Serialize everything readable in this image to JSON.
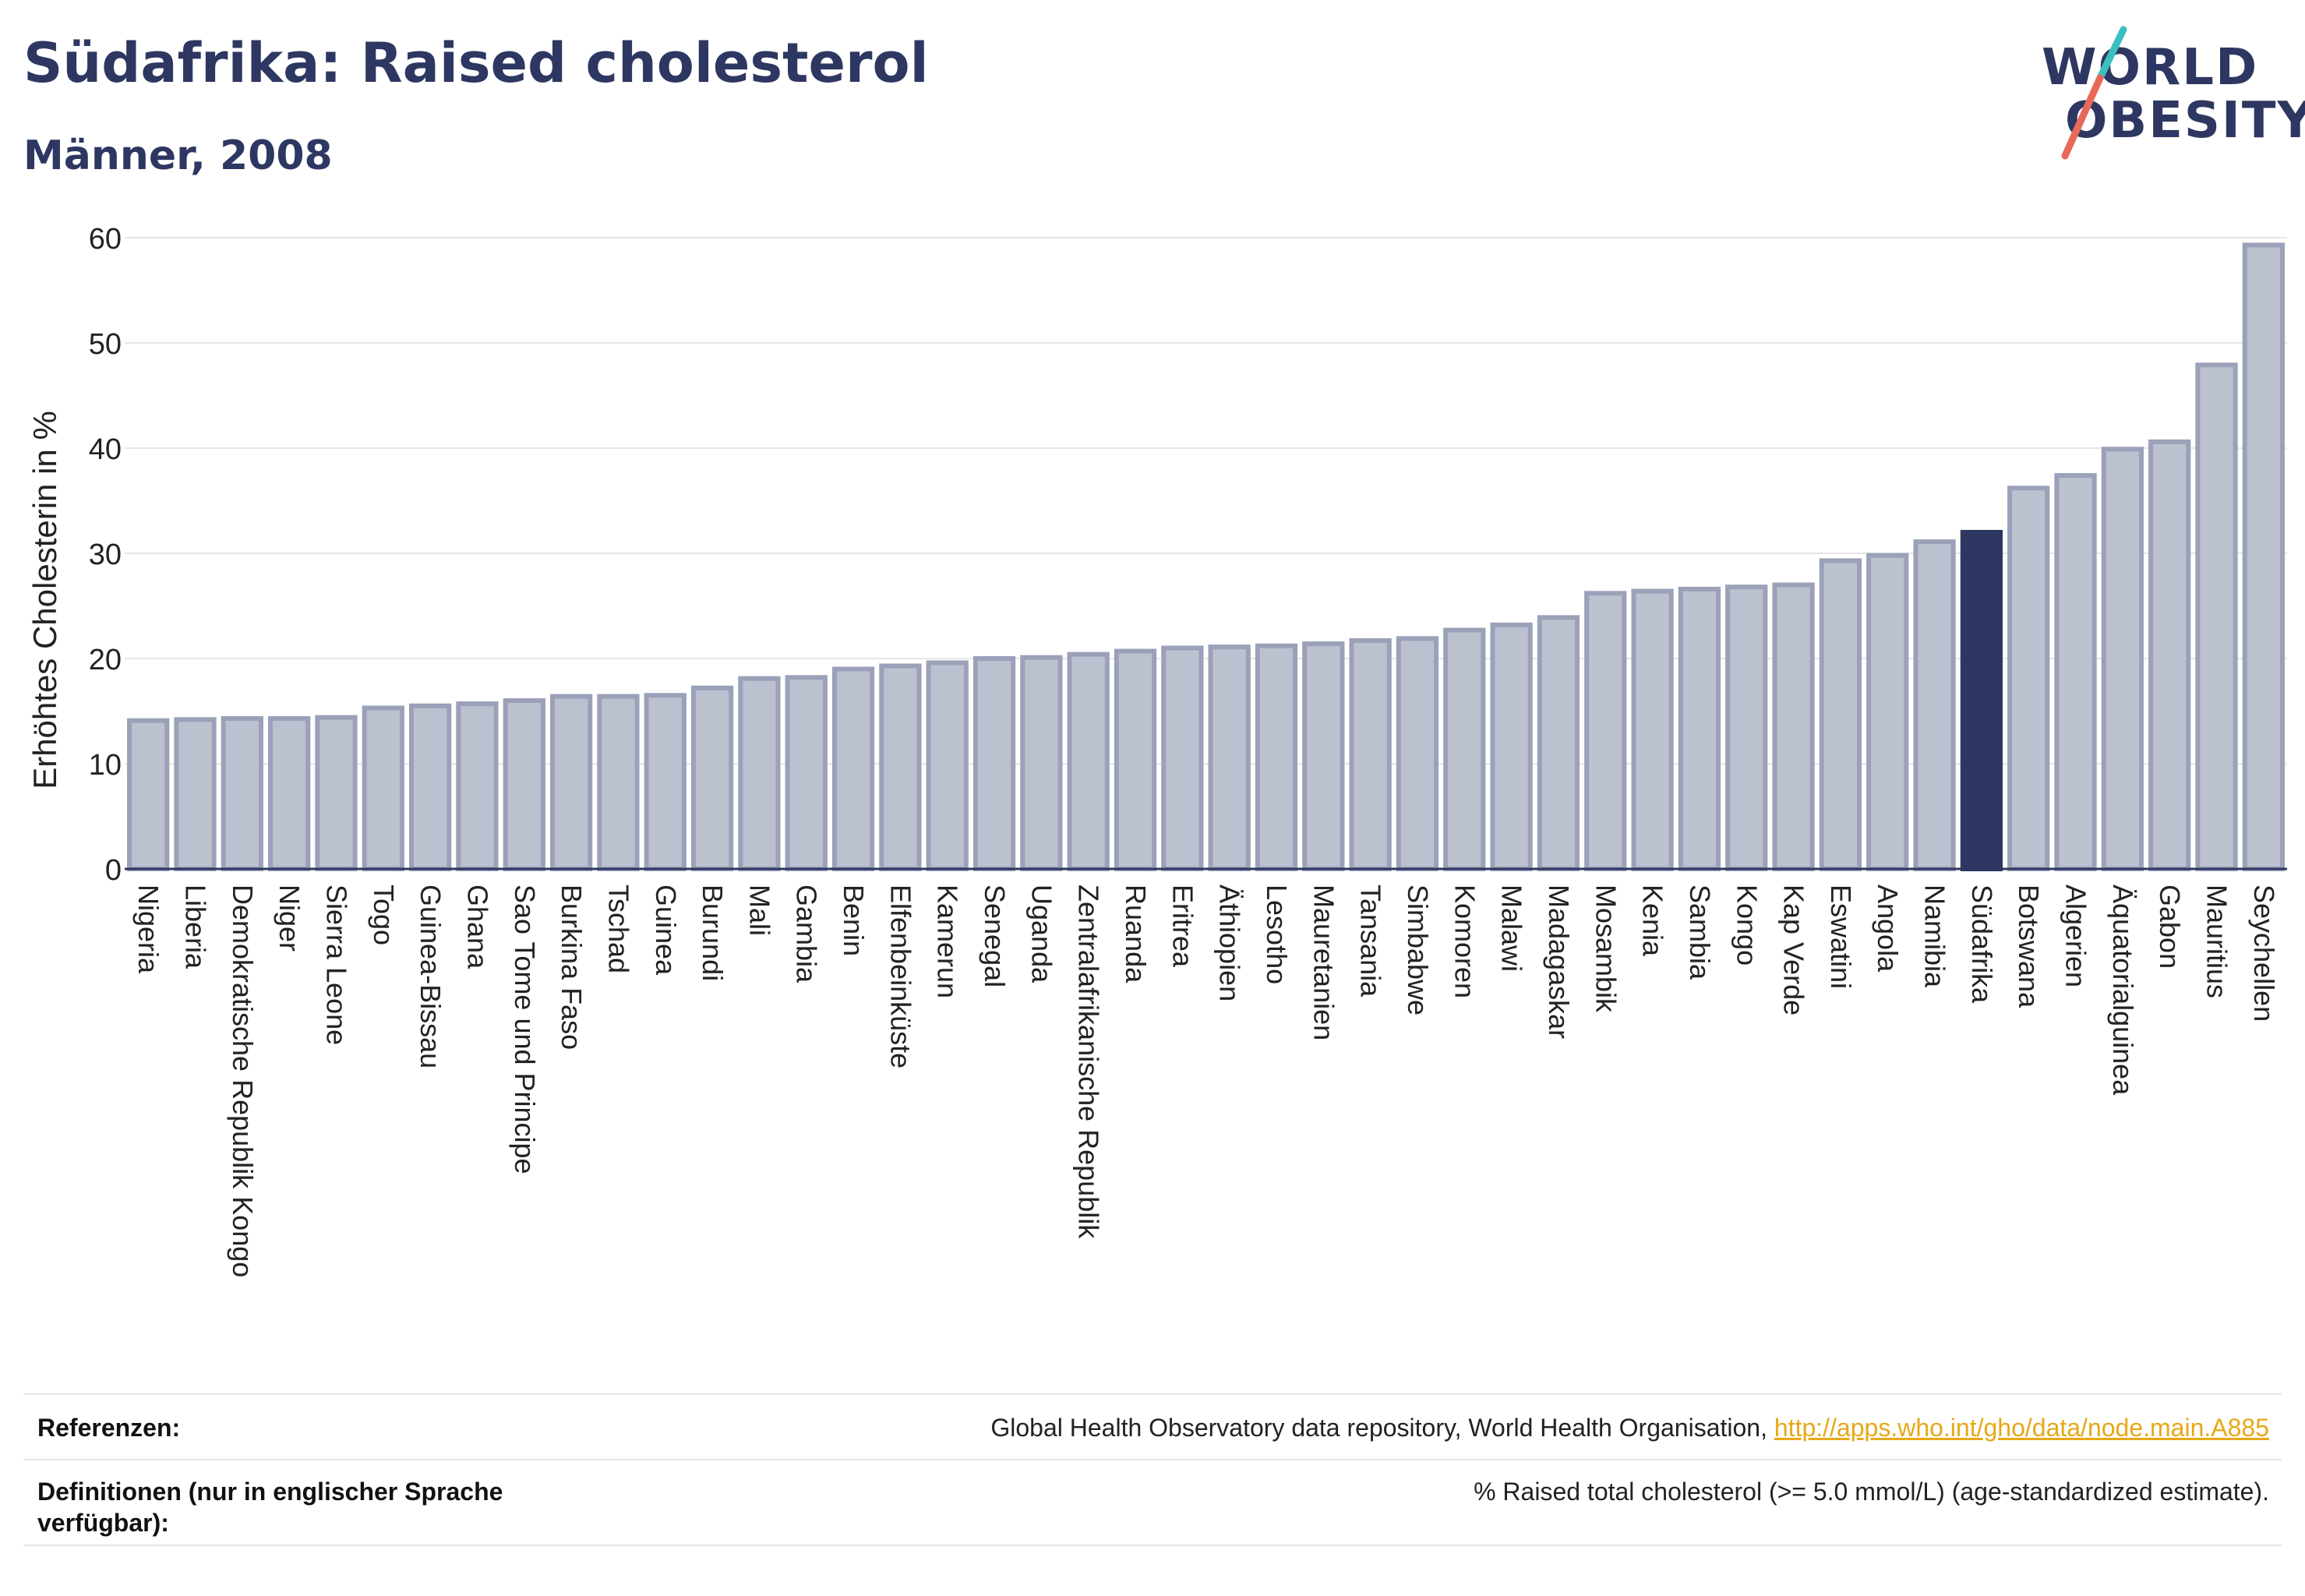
{
  "header": {
    "title": "Südafrika: Raised cholesterol",
    "subtitle": "Männer, 2008"
  },
  "logo": {
    "line1": "WORLD",
    "line2": "OBESITY",
    "colors": {
      "text": "#2d3761",
      "slash_top": "#3bbfbf",
      "slash_bottom": "#e8685a"
    }
  },
  "chart_data": {
    "type": "bar",
    "ylabel": "Erhöhtes Cholesterin in %",
    "xlabel": "",
    "ylim": [
      0,
      60
    ],
    "yticks": [
      0,
      10,
      20,
      30,
      40,
      50,
      60
    ],
    "grid": true,
    "highlight": "Südafrika",
    "colors": {
      "bar": "#bcc1d0",
      "bar_stroke": "#9aa1b8",
      "highlight": "#2d3761",
      "grid": "#e6e6e6"
    },
    "categories": [
      "Nigeria",
      "Liberia",
      "Demokratische Republik Kongo",
      "Niger",
      "Sierra Leone",
      "Togo",
      "Guinea-Bissau",
      "Ghana",
      "Sao Tome und Principe",
      "Burkina Faso",
      "Tschad",
      "Guinea",
      "Burundi",
      "Mali",
      "Gambia",
      "Benin",
      "Elfenbeinküste",
      "Kamerun",
      "Senegal",
      "Uganda",
      "Zentralafrikanische Republik",
      "Ruanda",
      "Eritrea",
      "Äthiopien",
      "Lesotho",
      "Mauretanien",
      "Tansania",
      "Simbabwe",
      "Komoren",
      "Malawi",
      "Madagaskar",
      "Mosambik",
      "Kenia",
      "Sambia",
      "Kongo",
      "Kap Verde",
      "Eswatini",
      "Angola",
      "Namibia",
      "Südafrika",
      "Botswana",
      "Algerien",
      "Äquatorialguinea",
      "Gabon",
      "Mauritius",
      "Seychellen"
    ],
    "values": [
      14.1,
      14.2,
      14.3,
      14.3,
      14.4,
      15.3,
      15.5,
      15.7,
      16.0,
      16.4,
      16.4,
      16.5,
      17.2,
      18.1,
      18.2,
      19.0,
      19.3,
      19.6,
      20.0,
      20.1,
      20.4,
      20.7,
      21.0,
      21.1,
      21.2,
      21.4,
      21.7,
      21.9,
      22.7,
      23.2,
      23.9,
      26.2,
      26.4,
      26.6,
      26.8,
      27.0,
      29.3,
      29.8,
      31.1,
      32.0,
      36.2,
      37.4,
      39.9,
      40.6,
      47.9,
      59.3
    ]
  },
  "footer": {
    "references_label": "Referenzen:",
    "references_text": "Global Health Observatory data repository, World Health Organisation, ",
    "references_link": "http://apps.who.int/gho/data/node.main.A885",
    "definitions_label_1": "Definitionen (nur in englischer Sprache",
    "definitions_label_2": "verfügbar):",
    "definitions_text": "% Raised total cholesterol (>= 5.0 mmol/L) (age-standardized estimate)."
  }
}
